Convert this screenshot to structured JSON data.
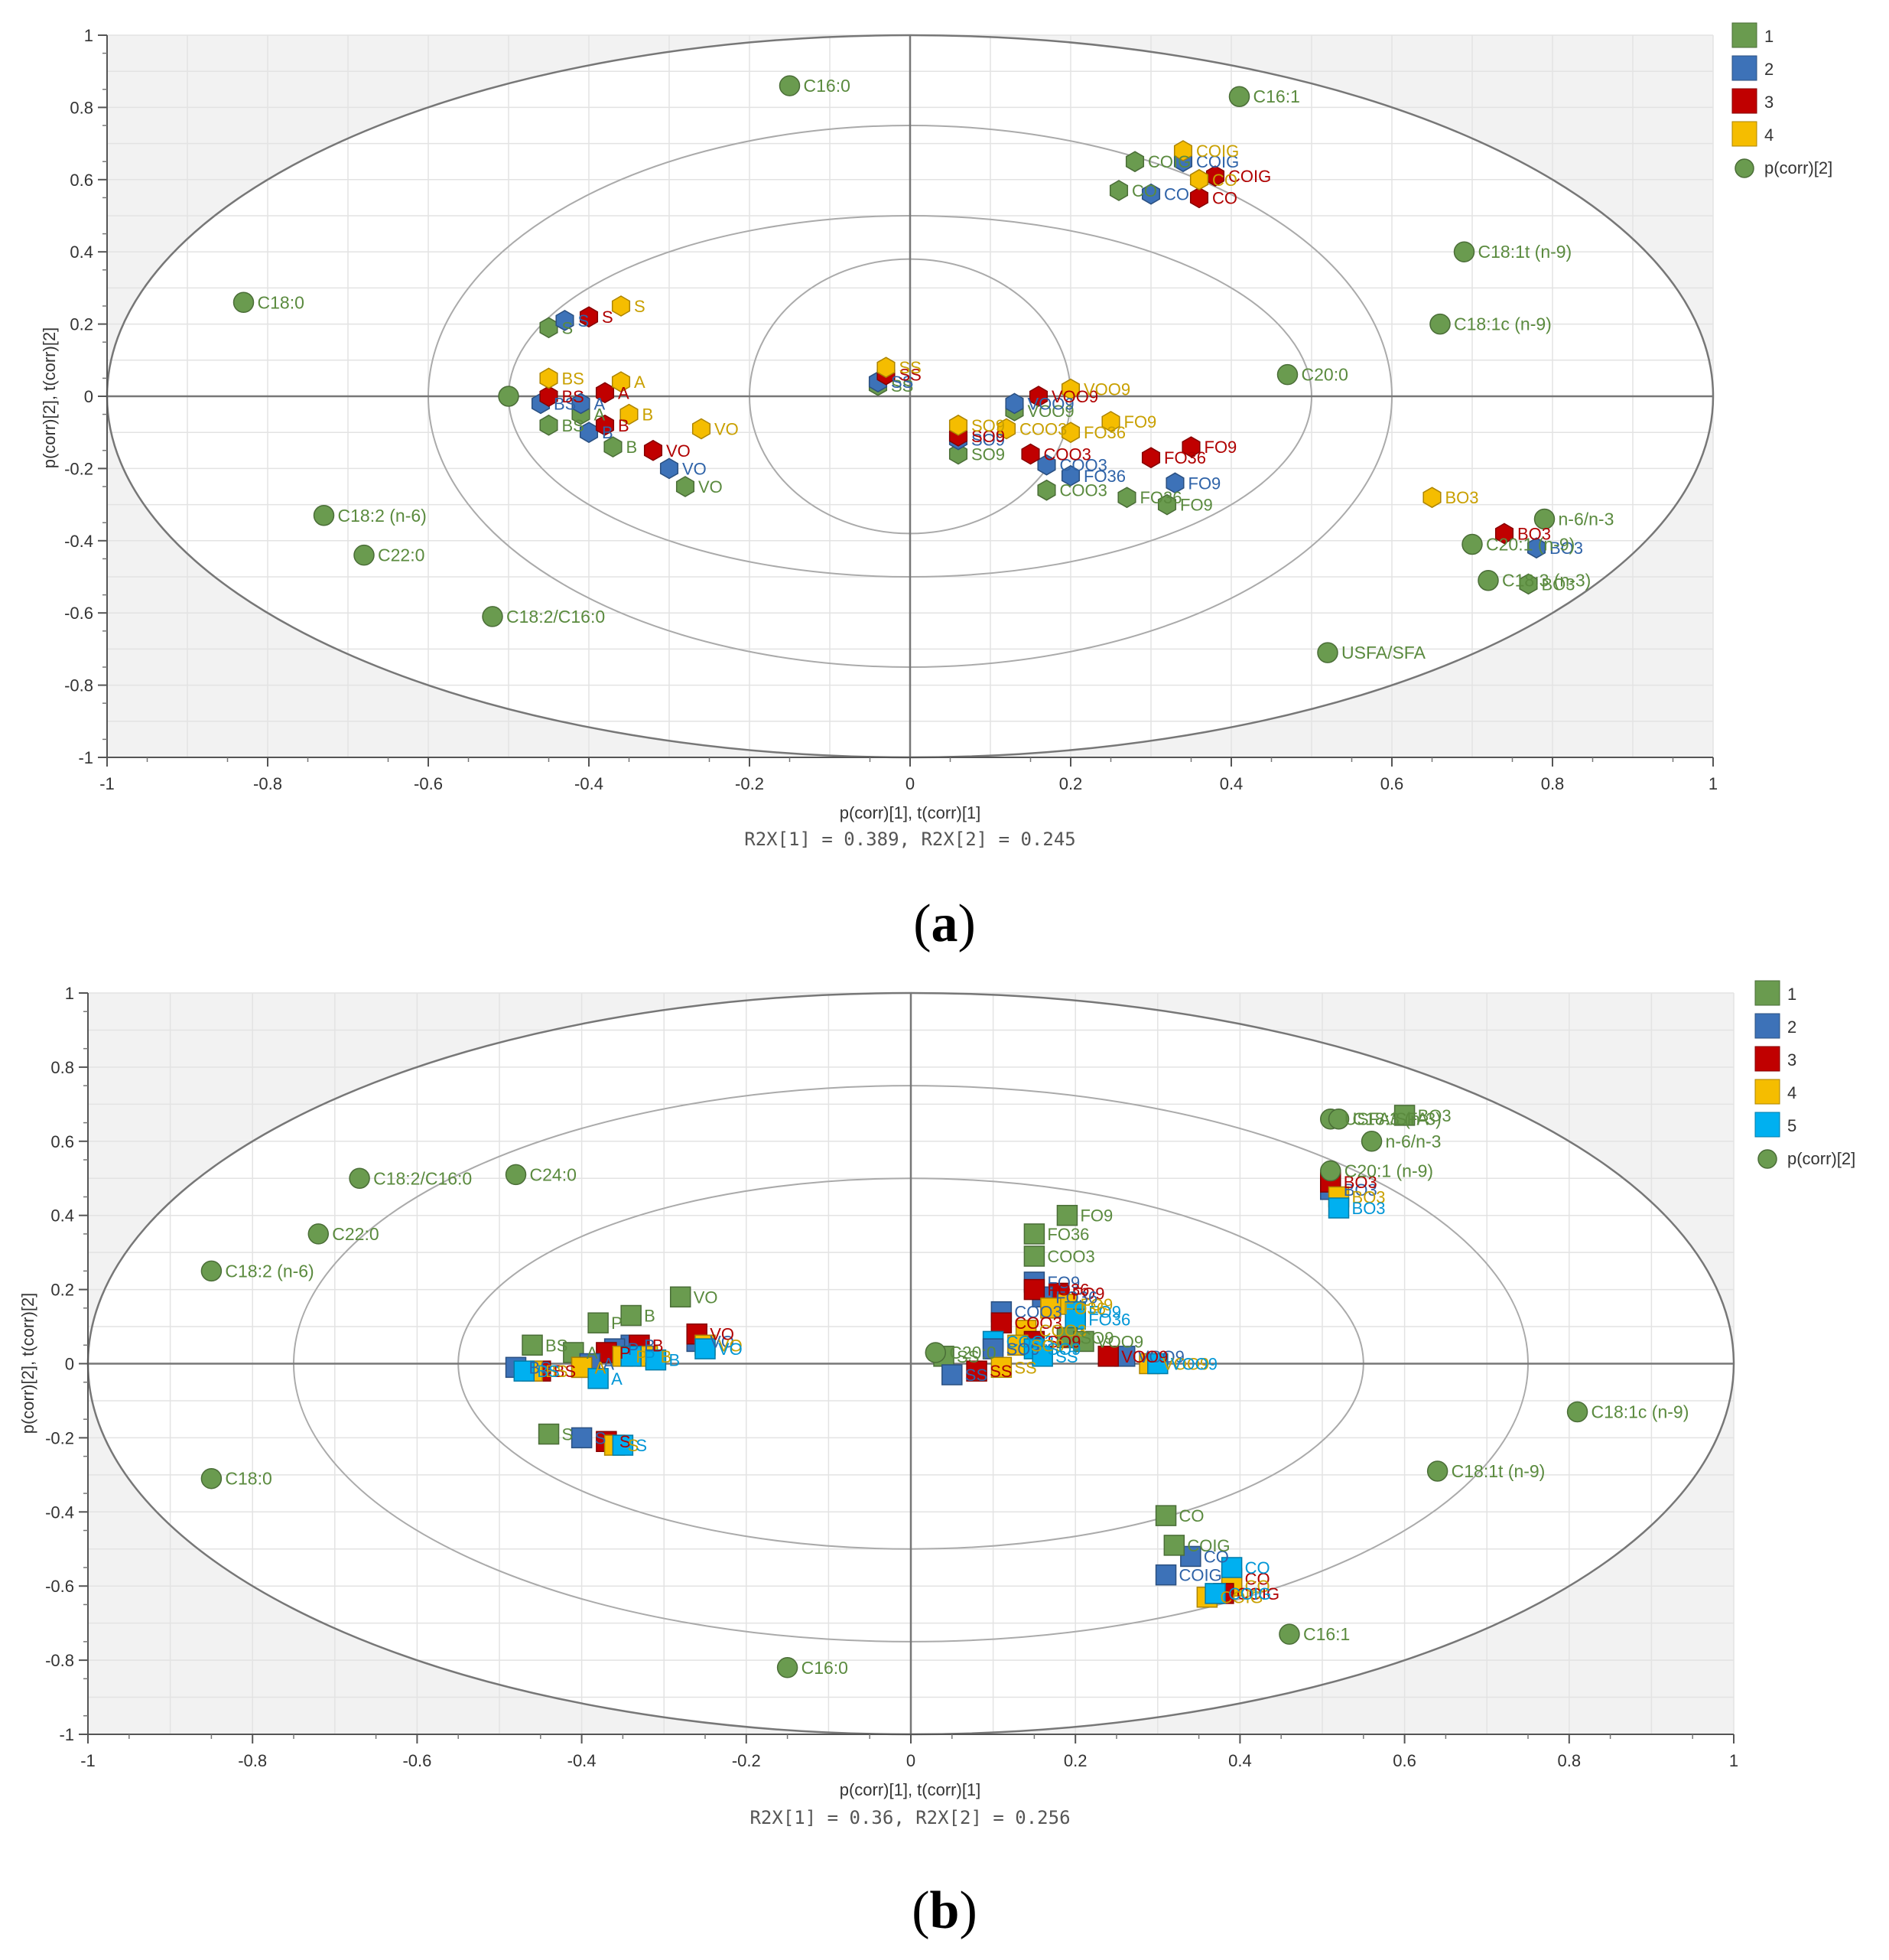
{
  "chart_data": [
    {
      "panel_id": "a",
      "type": "scatter",
      "caption": "a",
      "xlabel": "p(corr)[1], t(corr)[1]",
      "ylabel": "p(corr)[2], t(corr)[2]",
      "footnote": "R2X[1] = 0.389, R2X[2] = 0.245",
      "xlim": [
        -1,
        1
      ],
      "ylim": [
        -1,
        1
      ],
      "xticks": [
        "-1",
        "-0.8",
        "-0.6",
        "-0.4",
        "-0.2",
        "0",
        "0.2",
        "0.4",
        "0.6",
        "0.8",
        "1"
      ],
      "yticks": [
        "1",
        "0.8",
        "0.6",
        "0.4",
        "0.2",
        "0",
        "-0.2",
        "-0.4",
        "-0.6",
        "-0.8",
        "-1"
      ],
      "grid": true,
      "marker": "hexagon",
      "legend": [
        {
          "label": "1",
          "color": "#6a9b4f",
          "shape": "square"
        },
        {
          "label": "2",
          "color": "#3d72b8",
          "shape": "square"
        },
        {
          "label": "3",
          "color": "#c00000",
          "shape": "square"
        },
        {
          "label": "4",
          "color": "#f5bd00",
          "shape": "square"
        },
        {
          "label": "p(corr)[2]",
          "color": "#6a9b4f",
          "shape": "circle"
        }
      ],
      "variables": [
        {
          "label": "C16:0",
          "x": -0.15,
          "y": 0.86
        },
        {
          "label": "C16:1",
          "x": 0.41,
          "y": 0.83
        },
        {
          "label": "C18:0",
          "x": -0.83,
          "y": 0.26
        },
        {
          "label": "C18:1t (n-9)",
          "x": 0.69,
          "y": 0.4
        },
        {
          "label": "C18:1c (n-9)",
          "x": 0.66,
          "y": 0.2
        },
        {
          "label": "C20:0",
          "x": 0.47,
          "y": 0.06
        },
        {
          "label": "C18:2 (n-6)",
          "x": -0.73,
          "y": -0.33
        },
        {
          "label": "C22:0",
          "x": -0.68,
          "y": -0.44
        },
        {
          "label": "C18:2/C16:0",
          "x": -0.52,
          "y": -0.61
        },
        {
          "label": "USFA/SFA",
          "x": 0.52,
          "y": -0.71
        },
        {
          "label": "n-6/n-3",
          "x": 0.79,
          "y": -0.34
        },
        {
          "label": "C20:1 (n-9)",
          "x": 0.7,
          "y": -0.41
        },
        {
          "label": "C18:3 (n-3)",
          "x": 0.72,
          "y": -0.51
        },
        {
          "label": "",
          "x": -0.5,
          "y": 0.0
        }
      ],
      "observations": [
        {
          "label": "COIG",
          "group": 1,
          "x": 0.28,
          "y": 0.65
        },
        {
          "label": "COIG",
          "group": 2,
          "x": 0.34,
          "y": 0.65
        },
        {
          "label": "COIG",
          "group": 3,
          "x": 0.38,
          "y": 0.61
        },
        {
          "label": "COIG",
          "group": 4,
          "x": 0.34,
          "y": 0.68
        },
        {
          "label": "CO",
          "group": 1,
          "x": 0.26,
          "y": 0.57
        },
        {
          "label": "CO",
          "group": 2,
          "x": 0.3,
          "y": 0.56
        },
        {
          "label": "CO",
          "group": 3,
          "x": 0.36,
          "y": 0.55
        },
        {
          "label": "CO",
          "group": 4,
          "x": 0.36,
          "y": 0.6
        },
        {
          "label": "S",
          "group": 1,
          "x": -0.45,
          "y": 0.19
        },
        {
          "label": "S",
          "group": 2,
          "x": -0.43,
          "y": 0.21
        },
        {
          "label": "S",
          "group": 3,
          "x": -0.4,
          "y": 0.22
        },
        {
          "label": "S",
          "group": 4,
          "x": -0.36,
          "y": 0.25
        },
        {
          "label": "BS",
          "group": 1,
          "x": -0.45,
          "y": -0.08
        },
        {
          "label": "BS",
          "group": 2,
          "x": -0.46,
          "y": -0.02
        },
        {
          "label": "BS",
          "group": 3,
          "x": -0.45,
          "y": 0.0
        },
        {
          "label": "BS",
          "group": 4,
          "x": -0.45,
          "y": 0.05
        },
        {
          "label": "A",
          "group": 1,
          "x": -0.41,
          "y": -0.05
        },
        {
          "label": "A",
          "group": 2,
          "x": -0.41,
          "y": -0.02
        },
        {
          "label": "A",
          "group": 3,
          "x": -0.38,
          "y": 0.01
        },
        {
          "label": "A",
          "group": 4,
          "x": -0.36,
          "y": 0.04
        },
        {
          "label": "B",
          "group": 1,
          "x": -0.37,
          "y": -0.14
        },
        {
          "label": "B",
          "group": 2,
          "x": -0.4,
          "y": -0.1
        },
        {
          "label": "B",
          "group": 3,
          "x": -0.38,
          "y": -0.08
        },
        {
          "label": "B",
          "group": 4,
          "x": -0.35,
          "y": -0.05
        },
        {
          "label": "VO",
          "group": 1,
          "x": -0.28,
          "y": -0.25
        },
        {
          "label": "VO",
          "group": 2,
          "x": -0.3,
          "y": -0.2
        },
        {
          "label": "VO",
          "group": 3,
          "x": -0.32,
          "y": -0.15
        },
        {
          "label": "VO",
          "group": 4,
          "x": -0.26,
          "y": -0.09
        },
        {
          "label": "SS",
          "group": 1,
          "x": -0.04,
          "y": 0.03
        },
        {
          "label": "SS",
          "group": 2,
          "x": -0.04,
          "y": 0.04
        },
        {
          "label": "SS",
          "group": 3,
          "x": -0.03,
          "y": 0.06
        },
        {
          "label": "SS",
          "group": 4,
          "x": -0.03,
          "y": 0.08
        },
        {
          "label": "SO9",
          "group": 1,
          "x": 0.06,
          "y": -0.16
        },
        {
          "label": "SO9",
          "group": 2,
          "x": 0.06,
          "y": -0.12
        },
        {
          "label": "SO9",
          "group": 3,
          "x": 0.06,
          "y": -0.11
        },
        {
          "label": "SO9",
          "group": 4,
          "x": 0.06,
          "y": -0.08
        },
        {
          "label": "VOO9",
          "group": 1,
          "x": 0.13,
          "y": -0.04
        },
        {
          "label": "VOO9",
          "group": 2,
          "x": 0.13,
          "y": -0.02
        },
        {
          "label": "VOO9",
          "group": 3,
          "x": 0.16,
          "y": 0.0
        },
        {
          "label": "VOO9",
          "group": 4,
          "x": 0.2,
          "y": 0.02
        },
        {
          "label": "COO3",
          "group": 1,
          "x": 0.17,
          "y": -0.26
        },
        {
          "label": "COO3",
          "group": 2,
          "x": 0.17,
          "y": -0.19
        },
        {
          "label": "COO3",
          "group": 3,
          "x": 0.15,
          "y": -0.16
        },
        {
          "label": "COO3",
          "group": 4,
          "x": 0.12,
          "y": -0.09
        },
        {
          "label": "FO36",
          "group": 1,
          "x": 0.27,
          "y": -0.28
        },
        {
          "label": "FO36",
          "group": 2,
          "x": 0.2,
          "y": -0.22
        },
        {
          "label": "FO36",
          "group": 3,
          "x": 0.3,
          "y": -0.17
        },
        {
          "label": "FO36",
          "group": 4,
          "x": 0.2,
          "y": -0.1
        },
        {
          "label": "FO9",
          "group": 1,
          "x": 0.32,
          "y": -0.3
        },
        {
          "label": "FO9",
          "group": 2,
          "x": 0.33,
          "y": -0.24
        },
        {
          "label": "FO9",
          "group": 3,
          "x": 0.35,
          "y": -0.14
        },
        {
          "label": "FO9",
          "group": 4,
          "x": 0.25,
          "y": -0.07
        },
        {
          "label": "BO3",
          "group": 1,
          "x": 0.77,
          "y": -0.52
        },
        {
          "label": "BO3",
          "group": 2,
          "x": 0.78,
          "y": -0.42
        },
        {
          "label": "BO3",
          "group": 3,
          "x": 0.74,
          "y": -0.38
        },
        {
          "label": "BO3",
          "group": 4,
          "x": 0.65,
          "y": -0.28
        }
      ]
    },
    {
      "panel_id": "b",
      "type": "scatter",
      "caption": "b",
      "xlabel": "p(corr)[1], t(corr)[1]",
      "ylabel": "p(corr)[2], t(corr)[2]",
      "footnote": "R2X[1] = 0.36, R2X[2] = 0.256",
      "xlim": [
        -1,
        1
      ],
      "ylim": [
        -1,
        1
      ],
      "xticks": [
        "-1",
        "-0.8",
        "-0.6",
        "-0.4",
        "-0.2",
        "0",
        "0.2",
        "0.4",
        "0.6",
        "0.8",
        "1"
      ],
      "yticks": [
        "1",
        "0.8",
        "0.6",
        "0.4",
        "0.2",
        "0",
        "-0.2",
        "-0.4",
        "-0.6",
        "-0.8",
        "-1"
      ],
      "grid": true,
      "marker": "square",
      "legend": [
        {
          "label": "1",
          "color": "#6a9b4f",
          "shape": "square"
        },
        {
          "label": "2",
          "color": "#3d72b8",
          "shape": "square"
        },
        {
          "label": "3",
          "color": "#c00000",
          "shape": "square"
        },
        {
          "label": "4",
          "color": "#f5bd00",
          "shape": "square"
        },
        {
          "label": "5",
          "color": "#00b0f0",
          "shape": "square"
        },
        {
          "label": "p(corr)[2]",
          "color": "#6a9b4f",
          "shape": "circle"
        }
      ],
      "variables": [
        {
          "label": "C18:2/C16:0",
          "x": -0.67,
          "y": 0.5
        },
        {
          "label": "C24:0",
          "x": -0.48,
          "y": 0.51
        },
        {
          "label": "C22:0",
          "x": -0.72,
          "y": 0.35
        },
        {
          "label": "C18:2 (n-6)",
          "x": -0.85,
          "y": 0.25
        },
        {
          "label": "C18:0",
          "x": -0.85,
          "y": -0.31
        },
        {
          "label": "C16:0",
          "x": -0.15,
          "y": -0.82
        },
        {
          "label": "USFA/SFA",
          "x": 0.51,
          "y": 0.66
        },
        {
          "label": "C18:3 (n-3)",
          "x": 0.52,
          "y": 0.66
        },
        {
          "label": "n-6/n-3",
          "x": 0.56,
          "y": 0.6
        },
        {
          "label": "C20:1 (n-9)",
          "x": 0.51,
          "y": 0.52
        },
        {
          "label": "C18:1c (n-9)",
          "x": 0.81,
          "y": -0.13
        },
        {
          "label": "C18:1t (n-9)",
          "x": 0.64,
          "y": -0.29
        },
        {
          "label": "C16:1",
          "x": 0.46,
          "y": -0.73
        },
        {
          "label": "C20:0",
          "x": 0.03,
          "y": 0.03
        }
      ],
      "observations": [
        {
          "label": "BO3",
          "group": 1,
          "x": 0.6,
          "y": 0.67
        },
        {
          "label": "BO3",
          "group": 2,
          "x": 0.51,
          "y": 0.47
        },
        {
          "label": "BO3",
          "group": 3,
          "x": 0.51,
          "y": 0.49
        },
        {
          "label": "BO3",
          "group": 4,
          "x": 0.52,
          "y": 0.45
        },
        {
          "label": "BO3",
          "group": 5,
          "x": 0.52,
          "y": 0.42
        },
        {
          "label": "FO9",
          "group": 1,
          "x": 0.19,
          "y": 0.4
        },
        {
          "label": "FO9",
          "group": 2,
          "x": 0.15,
          "y": 0.22
        },
        {
          "label": "FO9",
          "group": 3,
          "x": 0.18,
          "y": 0.19
        },
        {
          "label": "FO9",
          "group": 4,
          "x": 0.19,
          "y": 0.16
        },
        {
          "label": "FO9",
          "group": 5,
          "x": 0.2,
          "y": 0.14
        },
        {
          "label": "FO36",
          "group": 1,
          "x": 0.15,
          "y": 0.35
        },
        {
          "label": "FO36",
          "group": 2,
          "x": 0.16,
          "y": 0.18
        },
        {
          "label": "FO36",
          "group": 3,
          "x": 0.15,
          "y": 0.2
        },
        {
          "label": "FO36",
          "group": 4,
          "x": 0.17,
          "y": 0.15
        },
        {
          "label": "FO36",
          "group": 5,
          "x": 0.2,
          "y": 0.12
        },
        {
          "label": "COO3",
          "group": 1,
          "x": 0.15,
          "y": 0.29
        },
        {
          "label": "COO3",
          "group": 2,
          "x": 0.11,
          "y": 0.14
        },
        {
          "label": "COO3",
          "group": 3,
          "x": 0.11,
          "y": 0.11
        },
        {
          "label": "COO3",
          "group": 4,
          "x": 0.14,
          "y": 0.09
        },
        {
          "label": "COO3",
          "group": 5,
          "x": 0.1,
          "y": 0.06
        },
        {
          "label": "SO9",
          "group": 1,
          "x": 0.19,
          "y": 0.07
        },
        {
          "label": "SO9",
          "group": 2,
          "x": 0.1,
          "y": 0.04
        },
        {
          "label": "SO9",
          "group": 3,
          "x": 0.15,
          "y": 0.06
        },
        {
          "label": "SO9",
          "group": 4,
          "x": 0.13,
          "y": 0.05
        },
        {
          "label": "SO9",
          "group": 5,
          "x": 0.15,
          "y": 0.04
        },
        {
          "label": "VOO9",
          "group": 1,
          "x": 0.21,
          "y": 0.06
        },
        {
          "label": "VOO9",
          "group": 2,
          "x": 0.26,
          "y": 0.02
        },
        {
          "label": "VOO9",
          "group": 3,
          "x": 0.24,
          "y": 0.02
        },
        {
          "label": "VOO9",
          "group": 4,
          "x": 0.29,
          "y": 0.0
        },
        {
          "label": "VOO9",
          "group": 5,
          "x": 0.3,
          "y": 0.0
        },
        {
          "label": "SS",
          "group": 1,
          "x": 0.04,
          "y": 0.02
        },
        {
          "label": "SS",
          "group": 2,
          "x": 0.05,
          "y": -0.03
        },
        {
          "label": "SS",
          "group": 3,
          "x": 0.08,
          "y": -0.02
        },
        {
          "label": "SS",
          "group": 4,
          "x": 0.11,
          "y": -0.01
        },
        {
          "label": "SS",
          "group": 5,
          "x": 0.16,
          "y": 0.02
        },
        {
          "label": "CO",
          "group": 1,
          "x": 0.31,
          "y": -0.41
        },
        {
          "label": "CO",
          "group": 2,
          "x": 0.34,
          "y": -0.52
        },
        {
          "label": "CO",
          "group": 3,
          "x": 0.39,
          "y": -0.58
        },
        {
          "label": "CO",
          "group": 4,
          "x": 0.39,
          "y": -0.6
        },
        {
          "label": "CO",
          "group": 5,
          "x": 0.39,
          "y": -0.55
        },
        {
          "label": "COIG",
          "group": 1,
          "x": 0.32,
          "y": -0.49
        },
        {
          "label": "COIG",
          "group": 2,
          "x": 0.31,
          "y": -0.57
        },
        {
          "label": "COIG",
          "group": 3,
          "x": 0.38,
          "y": -0.62
        },
        {
          "label": "COIG",
          "group": 4,
          "x": 0.36,
          "y": -0.63
        },
        {
          "label": "COIG",
          "group": 5,
          "x": 0.37,
          "y": -0.62
        },
        {
          "label": "VO",
          "group": 1,
          "x": -0.28,
          "y": 0.18
        },
        {
          "label": "VO",
          "group": 2,
          "x": -0.26,
          "y": 0.06
        },
        {
          "label": "VO",
          "group": 3,
          "x": -0.26,
          "y": 0.08
        },
        {
          "label": "VO",
          "group": 4,
          "x": -0.25,
          "y": 0.05
        },
        {
          "label": "VO",
          "group": 5,
          "x": -0.25,
          "y": 0.04
        },
        {
          "label": "B",
          "group": 1,
          "x": -0.34,
          "y": 0.13
        },
        {
          "label": "B",
          "group": 2,
          "x": -0.34,
          "y": 0.05
        },
        {
          "label": "B",
          "group": 3,
          "x": -0.33,
          "y": 0.05
        },
        {
          "label": "B",
          "group": 4,
          "x": -0.32,
          "y": 0.02
        },
        {
          "label": "B",
          "group": 5,
          "x": -0.31,
          "y": 0.01
        },
        {
          "label": "P",
          "group": 1,
          "x": -0.38,
          "y": 0.11
        },
        {
          "label": "P",
          "group": 2,
          "x": -0.36,
          "y": 0.04
        },
        {
          "label": "P",
          "group": 3,
          "x": -0.37,
          "y": 0.03
        },
        {
          "label": "P",
          "group": 4,
          "x": -0.35,
          "y": 0.02
        },
        {
          "label": "P",
          "group": 5,
          "x": -0.34,
          "y": 0.02
        },
        {
          "label": "BS",
          "group": 1,
          "x": -0.46,
          "y": 0.05
        },
        {
          "label": "BS",
          "group": 2,
          "x": -0.48,
          "y": -0.01
        },
        {
          "label": "BS",
          "group": 3,
          "x": -0.45,
          "y": -0.02
        },
        {
          "label": "BS",
          "group": 4,
          "x": -0.46,
          "y": -0.02
        },
        {
          "label": "BS",
          "group": 5,
          "x": -0.47,
          "y": -0.02
        },
        {
          "label": "A",
          "group": 1,
          "x": -0.41,
          "y": 0.03
        },
        {
          "label": "A",
          "group": 2,
          "x": -0.39,
          "y": 0.0
        },
        {
          "label": "A",
          "group": 3,
          "x": -0.4,
          "y": -0.01
        },
        {
          "label": "A",
          "group": 4,
          "x": -0.4,
          "y": -0.01
        },
        {
          "label": "A",
          "group": 5,
          "x": -0.38,
          "y": -0.04
        },
        {
          "label": "S",
          "group": 1,
          "x": -0.44,
          "y": -0.19
        },
        {
          "label": "S",
          "group": 2,
          "x": -0.4,
          "y": -0.2
        },
        {
          "label": "S",
          "group": 3,
          "x": -0.37,
          "y": -0.21
        },
        {
          "label": "S",
          "group": 4,
          "x": -0.36,
          "y": -0.22
        },
        {
          "label": "S",
          "group": 5,
          "x": -0.35,
          "y": -0.22
        }
      ]
    }
  ]
}
